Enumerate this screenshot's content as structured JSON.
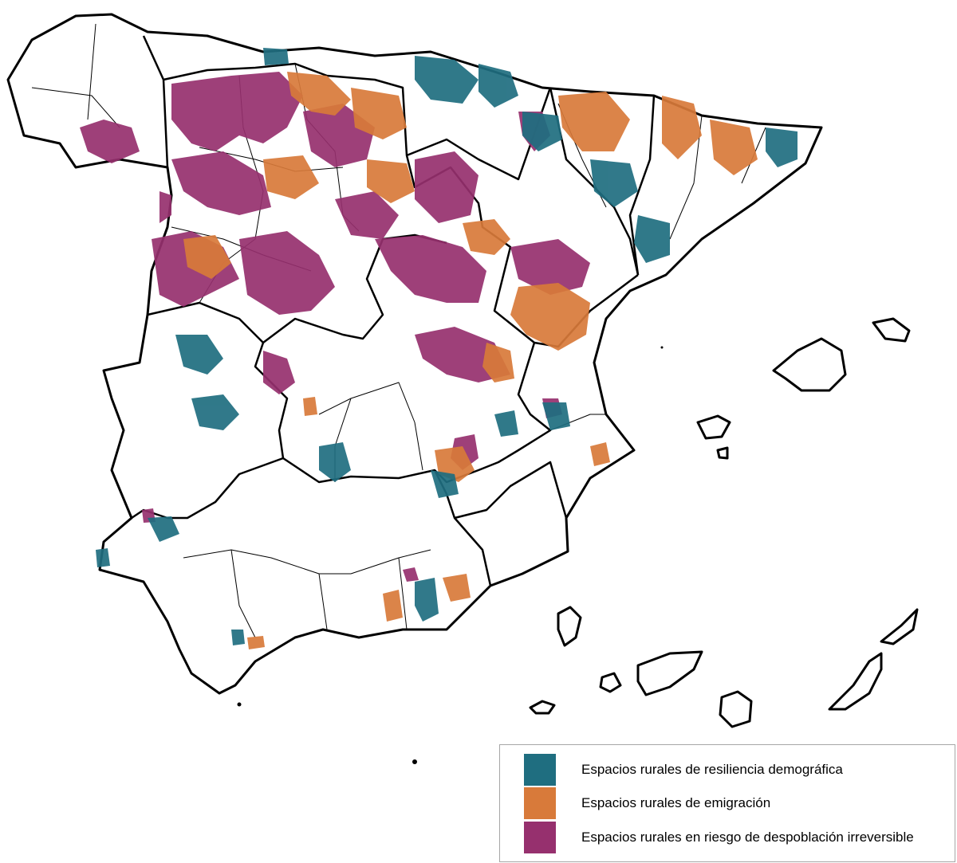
{
  "legend": {
    "items": [
      {
        "label": "Espacios rurales de resiliencia demográfica",
        "color": "#1f6e80",
        "category": "resilience"
      },
      {
        "label": "Espacios rurales de emigración",
        "color": "#d87a3a",
        "category": "emigration"
      },
      {
        "label": "Espacios rurales en riesgo de despoblación irreversible",
        "color": "#96306e",
        "category": "depopulation-risk"
      }
    ]
  },
  "map": {
    "boundary_color": "#000000",
    "background_color": "#ffffff"
  }
}
